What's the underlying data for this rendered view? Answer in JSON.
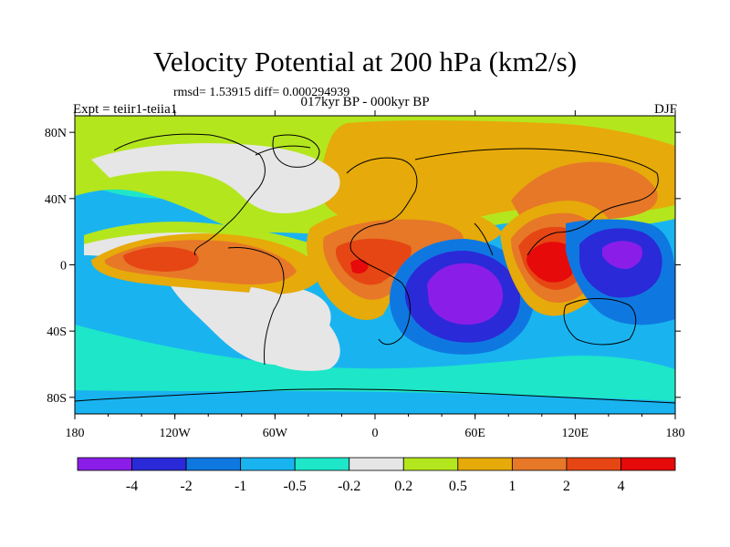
{
  "title": "Velocity Potential at 200 hPa (km2/s)",
  "stats_line": "rmsd= 1.53915 diff= 0.000294939",
  "subtitle": "017kyr BP - 000kyr BP",
  "left_label": "Expt = teiir1-teiia1",
  "right_label": "DJF",
  "chart_data": {
    "type": "heatmap",
    "x_ticks": [
      "180",
      "120W",
      "60W",
      "0",
      "60E",
      "120E",
      "180"
    ],
    "x_tick_values": [
      -180,
      -120,
      -60,
      0,
      60,
      120,
      180
    ],
    "y_ticks": [
      "80N",
      "40N",
      "0",
      "40S",
      "80S"
    ],
    "y_tick_values": [
      80,
      40,
      0,
      -40,
      -80
    ],
    "xlim": [
      -180,
      180
    ],
    "ylim": [
      -90,
      90
    ],
    "colorbar": {
      "labels": [
        "-4",
        "-2",
        "-1",
        "-0.5",
        "-0.2",
        "0.2",
        "0.5",
        "1",
        "2",
        "4"
      ],
      "colors": [
        "#8a1ee8",
        "#2a2ad8",
        "#0f78e0",
        "#19b4f0",
        "#1ee6c8",
        "#e6e6e6",
        "#b4e61e",
        "#e6aa0a",
        "#e67828",
        "#e64614",
        "#e60a0a"
      ]
    },
    "centers": [
      {
        "lon": 55,
        "lat": -18,
        "value": -4.6
      },
      {
        "lon": 150,
        "lat": 5,
        "value": -3.2
      },
      {
        "lon": -135,
        "lat": -48,
        "value": -0.9
      },
      {
        "lon": 40,
        "lat": -58,
        "value": -0.8
      },
      {
        "lon": -140,
        "lat": 8,
        "value": 2.3
      },
      {
        "lon": -100,
        "lat": 5,
        "value": 2.1
      },
      {
        "lon": -8,
        "lat": 5,
        "value": 2.9
      },
      {
        "lon": 100,
        "lat": 10,
        "value": 4.6
      },
      {
        "lon": 100,
        "lat": 45,
        "value": 1.4
      },
      {
        "lon": -30,
        "lat": -28,
        "value": 0.0
      },
      {
        "lon": -90,
        "lat": 60,
        "value": -0.1
      },
      {
        "lon": -40,
        "lat": 55,
        "value": 0.0
      }
    ]
  }
}
